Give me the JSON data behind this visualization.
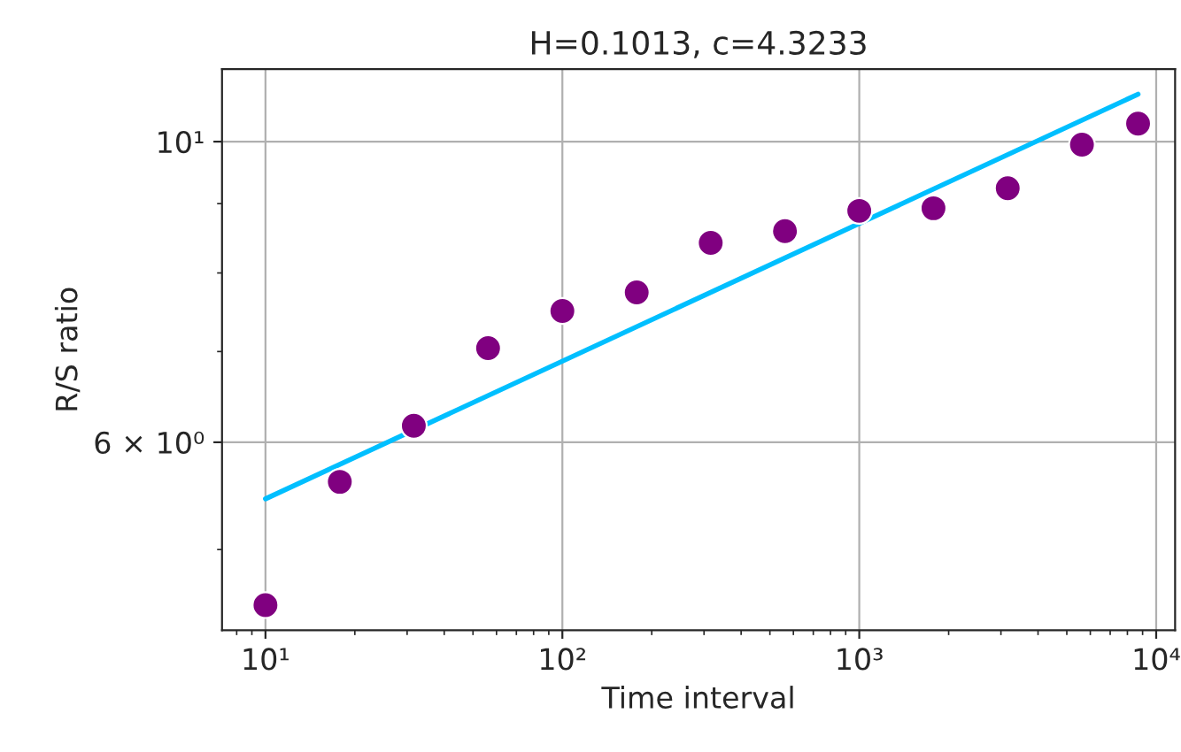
{
  "chart_data": {
    "type": "scatter",
    "title": "H=0.1013, c=4.3233",
    "xlabel": "Time interval",
    "ylabel": "R/S ratio",
    "log": "xy",
    "grid": true,
    "x": [
      10,
      17.8,
      31.6,
      56.2,
      100,
      178,
      316,
      562,
      1000,
      1778,
      3162,
      5623,
      8690
    ],
    "series": [
      {
        "color": "#800080",
        "marker": "circle",
        "values": [
          4.55,
          5.61,
          6.17,
          7.04,
          7.5,
          7.74,
          8.42,
          8.59,
          8.89,
          8.93,
          9.24,
          9.95,
          10.31
        ]
      },
      {
        "type": "line",
        "color": "#00bfff",
        "x": [
          10,
          8690
        ],
        "values": [
          5.45,
          10.84
        ],
        "line_style": "solid"
      }
    ],
    "xlim": [
      7.14,
      11580
    ],
    "ylim": [
      4.36,
      11.31
    ],
    "xticks": [
      {
        "value": 10,
        "label": "10¹"
      },
      {
        "value": 100,
        "label": "10²"
      },
      {
        "value": 1000,
        "label": "10³"
      },
      {
        "value": 10000,
        "label": "10⁴"
      }
    ],
    "yticks": [
      {
        "value": 6,
        "label": "6 × 10⁰"
      },
      {
        "value": 10,
        "label": "10¹"
      }
    ]
  }
}
